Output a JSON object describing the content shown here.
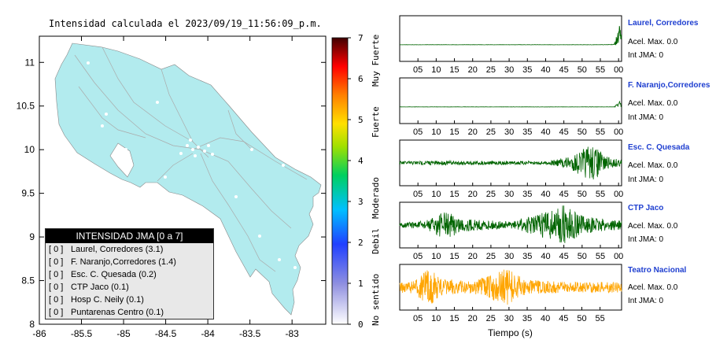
{
  "map": {
    "title": "Intensidad calculada el 2023/09/19_11:56:09_p.m.",
    "x_ticks": [
      "-86",
      "-85.5",
      "-85",
      "-84.5",
      "-84",
      "-83.5",
      "-83"
    ],
    "y_ticks": [
      "11",
      "10.5",
      "10",
      "9.5",
      "9",
      "8.5",
      "8"
    ],
    "land_color": "#b2ebee",
    "road_color": "#aaaaaa"
  },
  "colorbar": {
    "ticks": [
      "7",
      "6",
      "5",
      "4",
      "3",
      "2",
      "1",
      "0"
    ],
    "labels": [
      "Muy Fuerte",
      "Fuerte",
      "Moderado",
      "Debil",
      "No sentido"
    ]
  },
  "legend": {
    "title": "INTENSIDAD JMA [0 a 7]",
    "rows": [
      {
        "level": "[ 0 ]",
        "station": "Laurel, Corredores (3.1)"
      },
      {
        "level": "[ 0 ]",
        "station": "F. Naranjo,Corredores (1.4)"
      },
      {
        "level": "[ 0 ]",
        "station": "Esc. C. Quesada (0.2)"
      },
      {
        "level": "[ 0 ]",
        "station": "CTP Jaco (0.1)"
      },
      {
        "level": "[ 0 ]",
        "station": "Hosp C. Neily (0.1)"
      },
      {
        "level": "[ 0 ]",
        "station": "Puntarenas Centro (0.1)"
      }
    ]
  },
  "panels": [
    {
      "title": "Laurel, Corredores",
      "acel": "Acel. Max. 0.0",
      "int": "Int JMA: 0",
      "color": "#006400"
    },
    {
      "title": "F. Naranjo,Corredores",
      "acel": "Acel. Max. 0.0",
      "int": "Int JMA: 0",
      "color": "#006400"
    },
    {
      "title": "Esc. C. Quesada",
      "acel": "Acel. Max. 0.0",
      "int": "Int JMA: 0",
      "color": "#006400"
    },
    {
      "title": "CTP Jaco",
      "acel": "Acel. Max. 0.0",
      "int": "Int JMA: 0",
      "color": "#006400"
    },
    {
      "title": "Teatro Nacional",
      "acel": "Acel. Max. 0.0",
      "int": "Int JMA: 0",
      "color": "#ffa500"
    }
  ],
  "seismo_ticks_top": [
    "05",
    "10",
    "15",
    "20",
    "25",
    "30",
    "35",
    "40",
    "45",
    "50",
    "55",
    "00"
  ],
  "seismo_ticks_bottom": [
    "05",
    "10",
    "15",
    "20",
    "25",
    "30",
    "35",
    "40",
    "45",
    "50",
    "55"
  ],
  "xaxis_label": "Tiempo (s)",
  "chart_data": [
    {
      "type": "heatmap",
      "title": "Intensidad calculada el 2023/09/19_11:56:09_p.m.",
      "xlim": [
        -86,
        -82.6
      ],
      "ylim": [
        8,
        11.3
      ],
      "colorbar_range": [
        0,
        7
      ],
      "stations": [
        {
          "name": "Laurel, Corredores",
          "jma": 0,
          "value": 3.1
        },
        {
          "name": "F. Naranjo,Corredores",
          "jma": 0,
          "value": 1.4
        },
        {
          "name": "Esc. C. Quesada",
          "jma": 0,
          "value": 0.2
        },
        {
          "name": "CTP Jaco",
          "jma": 0,
          "value": 0.1
        },
        {
          "name": "Hosp C. Neily",
          "jma": 0,
          "value": 0.1
        },
        {
          "name": "Puntarenas Centro",
          "jma": 0,
          "value": 0.1
        }
      ]
    },
    {
      "type": "line",
      "xlabel": "Tiempo (s)",
      "xlim": [
        0,
        60
      ],
      "series": [
        {
          "name": "Laurel, Corredores",
          "envelope": [
            [
              0,
              0.01
            ],
            [
              55,
              0.01
            ],
            [
              58,
              0.03
            ],
            [
              59.5,
              0.9
            ],
            [
              60,
              0.6
            ]
          ]
        },
        {
          "name": "F. Naranjo,Corredores",
          "envelope": [
            [
              0,
              0.01
            ],
            [
              58,
              0.01
            ],
            [
              59.5,
              0.25
            ],
            [
              60,
              0.1
            ]
          ]
        },
        {
          "name": "Esc. C. Quesada",
          "envelope": [
            [
              0,
              0.08
            ],
            [
              10,
              0.1
            ],
            [
              40,
              0.08
            ],
            [
              46,
              0.3
            ],
            [
              52,
              0.9
            ],
            [
              56,
              0.3
            ],
            [
              60,
              0.15
            ]
          ]
        },
        {
          "name": "CTP Jaco",
          "envelope": [
            [
              0,
              0.1
            ],
            [
              7,
              0.2
            ],
            [
              12,
              0.65
            ],
            [
              18,
              0.3
            ],
            [
              30,
              0.15
            ],
            [
              38,
              0.55
            ],
            [
              44,
              0.95
            ],
            [
              50,
              0.4
            ],
            [
              60,
              0.2
            ]
          ]
        },
        {
          "name": "Teatro Nacional",
          "envelope": [
            [
              0,
              0.25
            ],
            [
              4,
              0.3
            ],
            [
              8,
              0.95
            ],
            [
              11,
              0.4
            ],
            [
              20,
              0.3
            ],
            [
              26,
              0.7
            ],
            [
              29,
              0.9
            ],
            [
              34,
              0.35
            ],
            [
              45,
              0.25
            ],
            [
              60,
              0.25
            ]
          ]
        }
      ]
    }
  ]
}
